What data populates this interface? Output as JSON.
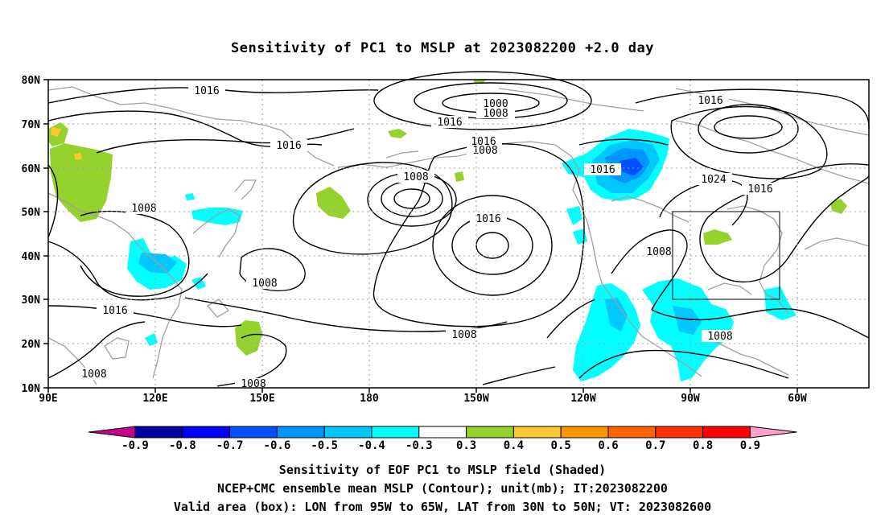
{
  "title": "Sensitivity of PC1 to MSLP at 2023082200 +2.0 day",
  "lat_labels": [
    "80N",
    "70N",
    "60N",
    "50N",
    "40N",
    "30N",
    "20N",
    "10N"
  ],
  "lon_labels": [
    "90E",
    "120E",
    "150E",
    "180",
    "150W",
    "120W",
    "90W",
    "60W"
  ],
  "contour_labels": [
    "1016",
    "1000",
    "1008",
    "1016",
    "1016",
    "1016",
    "1008",
    "1008",
    "1016",
    "1016",
    "1024",
    "1016",
    "1008",
    "1016",
    "1008",
    "1008",
    "1016",
    "1008",
    "1008"
  ],
  "colorbar": {
    "labels": [
      "-0.9",
      "-0.8",
      "-0.7",
      "-0.6",
      "-0.5",
      "-0.4",
      "-0.3",
      "0.3",
      "0.4",
      "0.5",
      "0.6",
      "0.7",
      "0.8",
      "0.9"
    ],
    "colors": [
      "#0000a0",
      "#0000ff",
      "#0050ff",
      "#0096ff",
      "#00c8ff",
      "#00ffff",
      "#ffffff",
      "#96d22d",
      "#ffc832",
      "#ff9600",
      "#ff6400",
      "#ff3200",
      "#ff0000"
    ],
    "low_end_color": "#c8008c",
    "high_end_color": "#ffa0c8"
  },
  "captions": [
    "Sensitivity of EOF PC1 to MSLP field (Shaded)",
    "NCEP+CMC ensemble mean MSLP (Contour); unit(mb); IT:2023082200",
    "Valid area (box): LON from 95W to 65W, LAT from 30N to 50N; VT: 2023082600"
  ],
  "colors": {
    "coast": "#a0a0a0",
    "contour": "#000000",
    "grid": "#a0a0a0"
  }
}
